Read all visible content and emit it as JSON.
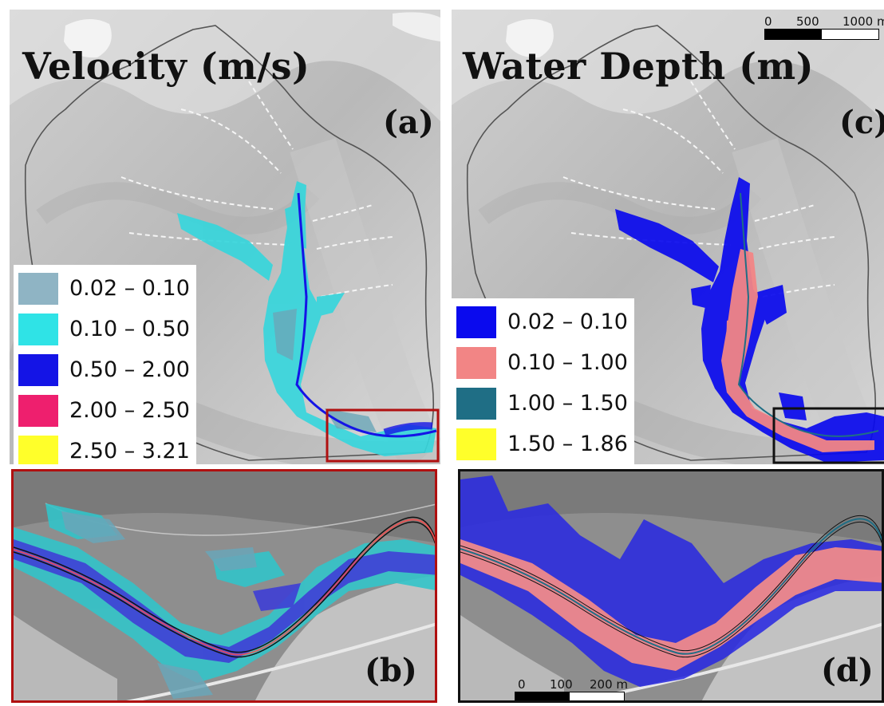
{
  "panels": {
    "a": {
      "title": "Velocity (m/s)",
      "label": "(a)"
    },
    "b": {
      "label": "(b)"
    },
    "c": {
      "title": "Water Depth (m)",
      "label": "(c)"
    },
    "d": {
      "label": "(d)"
    }
  },
  "velocity_legend": [
    {
      "range": "0.02 – 0.10",
      "color": "#8fb4c4"
    },
    {
      "range": "0.10 – 0.50",
      "color": "#2fe3e6"
    },
    {
      "range": "0.50 – 2.00",
      "color": "#1414e6"
    },
    {
      "range": "2.00 – 2.50",
      "color": "#ee1f6e"
    },
    {
      "range": "2.50 – 3.21",
      "color": "#ffff2a"
    }
  ],
  "depth_legend": [
    {
      "range": "0.02 – 0.10",
      "color": "#0a0aee"
    },
    {
      "range": "0.10 – 1.00",
      "color": "#f28585"
    },
    {
      "range": "1.00 – 1.50",
      "color": "#1f6e85"
    },
    {
      "range": "1.50 – 1.86",
      "color": "#ffff2a"
    }
  ],
  "scalebar_top": {
    "labels": [
      "0",
      "500",
      "1000 m"
    ]
  },
  "scalebar_bottom": {
    "labels": [
      "0",
      "100",
      "200 m"
    ]
  },
  "inset_frames": {
    "velocity_color": "#b01010",
    "depth_color": "#111111"
  }
}
